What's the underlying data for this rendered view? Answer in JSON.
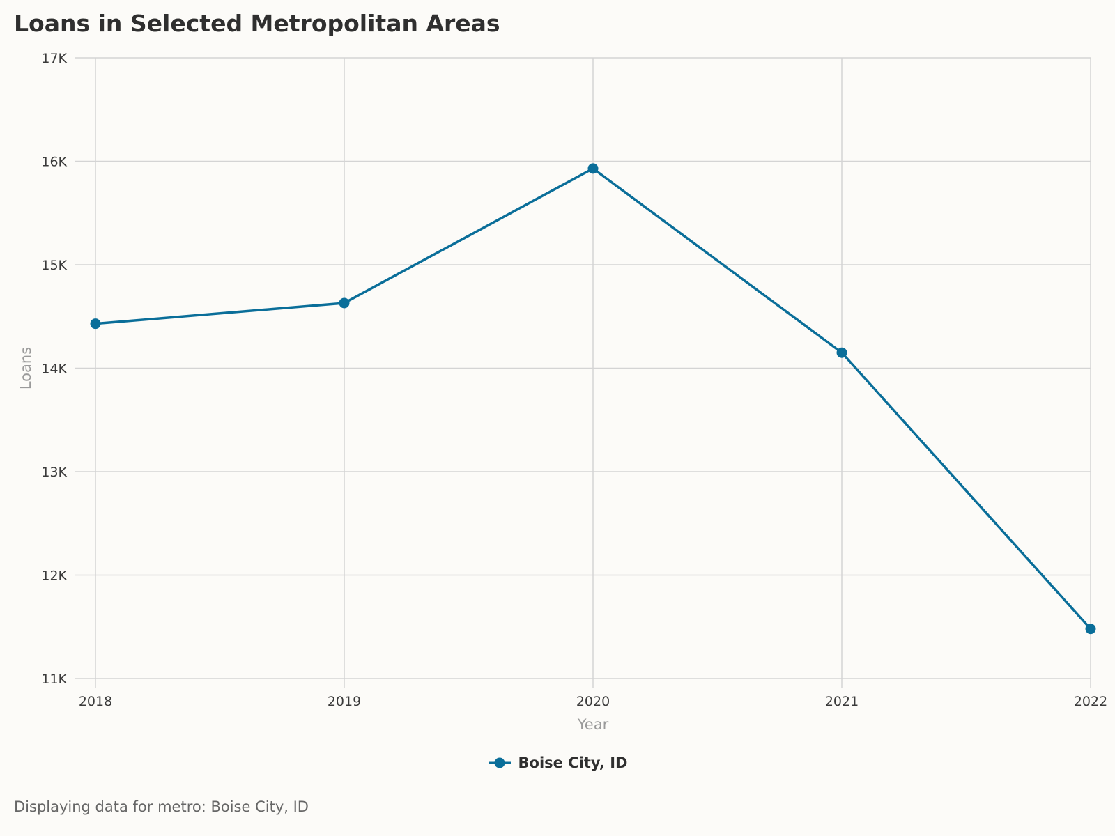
{
  "page": {
    "title": "Loans in Selected Metropolitan Areas",
    "footer_note": "Displaying data for metro: Boise City, ID"
  },
  "colors": {
    "series": "#0a6e99",
    "grid": "#d4d4d4",
    "background": "#fcfbf8"
  },
  "chart_data": {
    "type": "line",
    "title": "Loans in Selected Metropolitan Areas",
    "xlabel": "Year",
    "ylabel": "Loans",
    "categories": [
      "2018",
      "2019",
      "2020",
      "2021",
      "2022"
    ],
    "yticks": [
      11000,
      12000,
      13000,
      14000,
      15000,
      16000,
      17000
    ],
    "ytick_labels": [
      "11K",
      "12K",
      "13K",
      "14K",
      "15K",
      "16K",
      "17K"
    ],
    "ylim": [
      11000,
      17000
    ],
    "grid": true,
    "legend_position": "bottom-center",
    "series": [
      {
        "name": "Boise City, ID",
        "color": "#0a6e99",
        "values": [
          14430,
          14630,
          15930,
          14150,
          11480
        ]
      }
    ]
  }
}
